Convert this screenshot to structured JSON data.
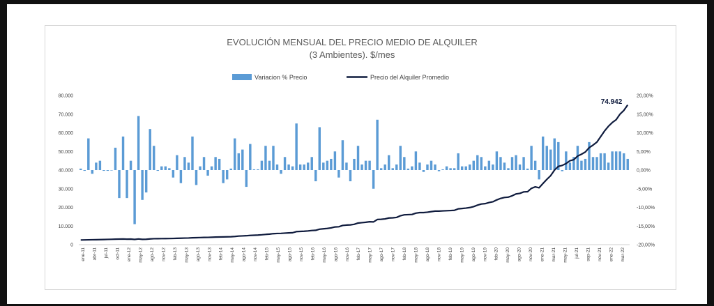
{
  "chart_data": {
    "type": "bar+line",
    "title": "EVOLUCIÓN MENSUAL DEL PRECIO MEDIO DE ALQUILER",
    "subtitle": "(3 Ambientes). $/mes",
    "series": [
      {
        "name": "Variacion % Precio",
        "type": "bar",
        "axis": "right",
        "color": "#5b9bd5",
        "values": [
          0.4,
          -0.2,
          8.5,
          -1.0,
          2.0,
          2.5,
          -0.2,
          -0.2,
          -0.1,
          6.0,
          -7.5,
          9.0,
          -7.5,
          2.5,
          -14.5,
          14.5,
          -8.0,
          -6.0,
          11.0,
          6.5,
          -0.2,
          1.0,
          1.0,
          0.5,
          -2.0,
          4.0,
          -3.5,
          3.5,
          2.0,
          9.0,
          -4.0,
          1.0,
          3.5,
          -1.5,
          1.0,
          3.5,
          3.0,
          -3.5,
          -2.5,
          0.4,
          8.5,
          4.5,
          5.5,
          -4.5,
          7.0,
          0.2,
          0.2,
          2.5,
          6.5,
          2.5,
          6.5,
          1.5,
          -1.0,
          3.5,
          1.5,
          1.0,
          12.5,
          1.5,
          1.5,
          2.0,
          3.5,
          -3.0,
          11.5,
          2.0,
          2.5,
          3.0,
          5.0,
          -2.0,
          8.0,
          2.0,
          -3.0,
          3.0,
          6.5,
          1.5,
          2.5,
          2.5,
          -5.0,
          13.5,
          0.5,
          1.5,
          4.0,
          0.5,
          1.5,
          6.5,
          3.5,
          0.4,
          1.0,
          5.0,
          2.0,
          -0.5,
          1.5,
          2.5,
          1.5,
          -0.3,
          0.2,
          1.0,
          0.5,
          0.5,
          4.5,
          1.0,
          1.0,
          1.5,
          2.5,
          4.0,
          3.5,
          1.0,
          2.5,
          1.5,
          5.0,
          3.5,
          2.0,
          0.5,
          3.5,
          4.0,
          1.5,
          3.5,
          0.4,
          6.5,
          2.5,
          -2.5,
          9.0,
          6.5,
          5.5,
          8.5,
          7.5,
          -0.3,
          5.0,
          2.0,
          3.5,
          6.5,
          2.5,
          3.0,
          7.5,
          3.5,
          3.5,
          4.5,
          4.5,
          2.0,
          5.0,
          5.0,
          5.0,
          4.5,
          3.0
        ]
      },
      {
        "name": "Precio del Alquiler Promedio",
        "type": "line",
        "axis": "left",
        "color": "#0f1b3d",
        "values": [
          2500,
          2550,
          2600,
          2630,
          2660,
          2700,
          2760,
          2820,
          2870,
          2930,
          2990,
          3050,
          2950,
          3000,
          2800,
          3050,
          2850,
          2900,
          3080,
          3200,
          3230,
          3250,
          3270,
          3300,
          3350,
          3400,
          3450,
          3520,
          3580,
          3700,
          3750,
          3800,
          3880,
          3900,
          3960,
          4060,
          4100,
          4150,
          4200,
          4250,
          4400,
          4600,
          4700,
          4800,
          4950,
          5050,
          5150,
          5300,
          5500,
          5650,
          5900,
          6000,
          6050,
          6200,
          6300,
          6400,
          7000,
          7100,
          7200,
          7350,
          7600,
          7700,
          8300,
          8500,
          8700,
          9000,
          9500,
          9600,
          10300,
          10500,
          10600,
          10900,
          11600,
          11800,
          12000,
          12300,
          12200,
          13500,
          13600,
          13800,
          14300,
          14400,
          14600,
          15500,
          16000,
          16100,
          16200,
          16900,
          17200,
          17200,
          17400,
          17700,
          18000,
          18000,
          18100,
          18200,
          18300,
          18400,
          19200,
          19400,
          19600,
          19900,
          20400,
          21200,
          21800,
          22000,
          22600,
          23000,
          24000,
          24800,
          25300,
          25500,
          26200,
          27200,
          27500,
          28300,
          28400,
          30200,
          31000,
          30500,
          32800,
          35000,
          37000,
          40000,
          42000,
          42500,
          43500,
          45000,
          45600,
          47500,
          48500,
          49700,
          52000,
          53400,
          55000,
          58000,
          61000,
          63500,
          65500,
          67000,
          70000,
          72000,
          74942
        ]
      }
    ],
    "y_left": {
      "min": 0,
      "max": 80000,
      "ticks": [
        "0",
        "10.000",
        "20.000",
        "30.000",
        "40.000",
        "50.000",
        "60.000",
        "70.000",
        "80.000"
      ]
    },
    "y_right": {
      "min": -20,
      "max": 20,
      "ticks": [
        "-20,00%",
        "-15,00%",
        "-10,00%",
        "-5,00%",
        "0,00%",
        "5,00%",
        "10,00%",
        "15,00%",
        "20,00%"
      ]
    },
    "x_tick_labels": [
      "ene-11",
      "abr-11",
      "jul-11",
      "oct-11",
      "ene-12",
      "may-12",
      "ago-12",
      "nov-12",
      "feb-13",
      "may-13",
      "ago-13",
      "nov-13",
      "feb-14",
      "may-14",
      "ago-14",
      "nov-14",
      "feb-15",
      "may-15",
      "ago-15",
      "nov-15",
      "feb-16",
      "may-16",
      "ago-16",
      "nov-16",
      "feb-17",
      "may-17",
      "ago-17",
      "nov-17",
      "feb-18",
      "may-18",
      "ago-18",
      "nov-18",
      "feb-19",
      "may-19",
      "ago-19",
      "nov-19",
      "feb-20",
      "may-20",
      "ago-20",
      "nov-20",
      "ene-21",
      "mar-21",
      "may-21",
      "jul-21",
      "sep-21",
      "nov-21",
      "ene-22",
      "mar-22"
    ],
    "annotation": "74.942",
    "legend": "top",
    "grid": false
  }
}
